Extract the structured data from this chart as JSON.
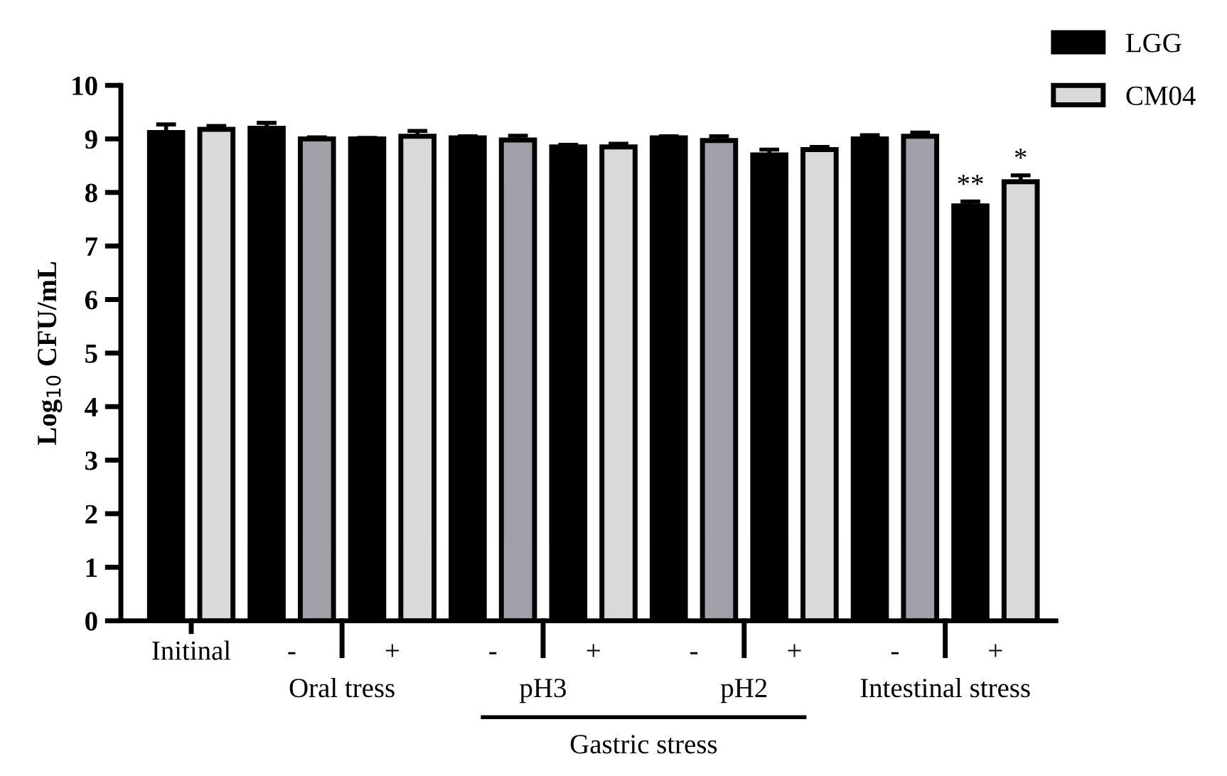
{
  "chart_data": {
    "type": "bar",
    "ylabel": "Log$_{10}$ CFU/mL",
    "categories": [
      "Initinal",
      "-",
      "+",
      "-",
      "+",
      "-",
      "+",
      "-",
      "+"
    ],
    "series": [
      {
        "name": "LGG",
        "color": "#000000",
        "values": [
          9.12,
          9.2,
          9.0,
          9.02,
          8.85,
          9.02,
          8.7,
          9.0,
          7.75
        ],
        "errors": [
          0.15,
          0.1,
          0.02,
          0.03,
          0.04,
          0.03,
          0.1,
          0.07,
          0.08
        ]
      },
      {
        "name": "CM04",
        "color": "#d9d9d9",
        "colors": [
          "#d9d9d9",
          "#a0a0a8",
          "#d9d9d9",
          "#a0a0a8",
          "#d9d9d9",
          "#a0a0a8",
          "#d9d9d9",
          "#a0a0a8",
          "#d9d9d9"
        ],
        "values": [
          9.18,
          9.0,
          9.05,
          8.98,
          8.85,
          8.97,
          8.8,
          9.05,
          8.2
        ],
        "errors": [
          0.06,
          0.03,
          0.1,
          0.08,
          0.06,
          0.08,
          0.05,
          0.07,
          0.12
        ]
      }
    ],
    "ylim": [
      0,
      10
    ],
    "yticks": [
      0,
      1,
      2,
      3,
      4,
      5,
      6,
      7,
      8,
      9,
      10
    ],
    "grid": false,
    "legend": "top right",
    "annotations": [
      "Oral tress",
      "pH3",
      "pH2",
      "Intestinal stress",
      "Gastric stress",
      "**",
      "*"
    ]
  }
}
